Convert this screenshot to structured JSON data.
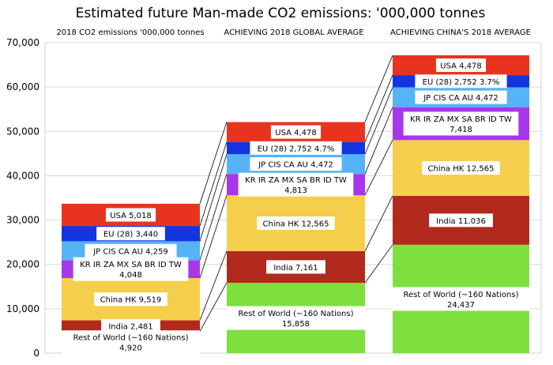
{
  "chart_data": {
    "type": "bar",
    "subtype": "stacked",
    "title": "Estimated future Man-made CO2 emissions:  '000,000 tonnes",
    "ylim": [
      0,
      70000
    ],
    "yticks": [
      0,
      10000,
      20000,
      30000,
      40000,
      50000,
      60000,
      70000
    ],
    "ytick_labels": [
      "0",
      "10,000",
      "20,000",
      "30,000",
      "40,000",
      "50,000",
      "60,000",
      "70,000"
    ],
    "gridlines": true,
    "categories": [
      "2018 CO2 emissions '000,000 tonnes",
      "ACHIEVING 2018 GLOBAL AVERAGE",
      "ACHIEVING CHINA'S 2018 AVERAGE"
    ],
    "series": [
      {
        "name": "Rest of World (~160 Nations)",
        "color": "#7ee03f",
        "values": [
          4920,
          15858,
          24437
        ],
        "labels": [
          [
            "Rest of World (~160 Nations)",
            "4,920"
          ],
          [
            "Rest of World (~160 Nations)",
            "15,858"
          ],
          [
            "Rest of World (~160 Nations)",
            "24,437"
          ]
        ]
      },
      {
        "name": "India",
        "color": "#b12a1d",
        "values": [
          2481,
          7161,
          11036
        ],
        "labels": [
          [
            "India 2,481"
          ],
          [
            "India 7,161"
          ],
          [
            "India 11,036"
          ]
        ]
      },
      {
        "name": "China HK",
        "color": "#f5cf4b",
        "values": [
          9519,
          12565,
          12565
        ],
        "labels": [
          [
            "China HK 9,519"
          ],
          [
            "China HK 12,565"
          ],
          [
            "China HK 12,565"
          ]
        ]
      },
      {
        "name": "KR IR ZA MX SA BR ID TW",
        "color": "#a637ea",
        "values": [
          4048,
          4813,
          7418
        ],
        "labels": [
          [
            "KR IR ZA MX SA BR ID TW",
            "4,048"
          ],
          [
            "KR IR ZA MX SA BR ID TW",
            "4,813"
          ],
          [
            "KR IR ZA MX SA BR ID TW",
            "7,418"
          ]
        ]
      },
      {
        "name": "JP CIS CA AU",
        "color": "#56b3f5",
        "values": [
          4259,
          4472,
          4472
        ],
        "labels": [
          [
            "JP CIS CA AU 4,259"
          ],
          [
            "JP CIS CA AU 4,472"
          ],
          [
            "JP CIS CA AU 4,472"
          ]
        ]
      },
      {
        "name": "EU (28)",
        "color": "#1434e0",
        "values": [
          3440,
          2752,
          2752
        ],
        "labels": [
          [
            "EU (28) 3,440"
          ],
          [
            "EU (28) 2,752 4.7%"
          ],
          [
            "EU (28) 2,752 3.7%"
          ]
        ]
      },
      {
        "name": "USA",
        "color": "#e8341f",
        "values": [
          5018,
          4478,
          4478
        ],
        "labels": [
          [
            "USA 5,018"
          ],
          [
            "USA 4,478"
          ],
          [
            "USA 4,478"
          ]
        ]
      }
    ]
  }
}
